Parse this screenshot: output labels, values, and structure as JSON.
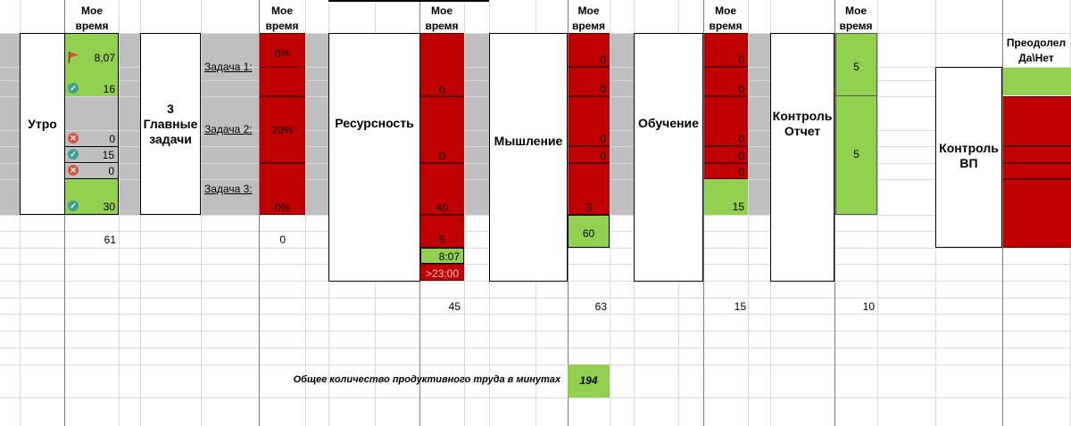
{
  "headers": {
    "my_time": "Мое время",
    "overcame": "Преодолел Да\\Нет"
  },
  "blocks": {
    "morning": "Утро",
    "main_tasks": "3 Главные задачи",
    "resourcefulness": "Ресурсность",
    "thinking": "Мышление",
    "learning": "Обучение",
    "control_report": "Контроль Отчет",
    "control_vp": "Контроль ВП"
  },
  "tasks": [
    "Задача 1:",
    "Задача 2:",
    "Задача 3:"
  ],
  "morning_col": [
    "8,07",
    "16",
    "0",
    "15",
    "0",
    "30"
  ],
  "main_tasks_col": [
    "0%",
    "20%",
    "0%"
  ],
  "resource_col": [
    "0",
    "0",
    "40",
    "5",
    "8:07",
    ">23:00"
  ],
  "thinking_col": [
    "0",
    "0",
    "0",
    "0",
    "3",
    "60"
  ],
  "learning_col": [
    "0",
    "0",
    "0",
    "0",
    "0",
    "15"
  ],
  "control_col": [
    "5",
    "5"
  ],
  "totals": {
    "morning": "61",
    "main_tasks": "0",
    "resource": "45",
    "thinking": "63",
    "learning": "15",
    "control": "10"
  },
  "summary": {
    "label": "Общее количество продуктивного труда в минутах",
    "value": "194"
  },
  "icons": [
    "flag-icon",
    "check-circle-icon",
    "cross-circle-icon"
  ],
  "colors": {
    "red": "#c00000",
    "green": "#92d050",
    "gray_band": "#bfbfbf"
  }
}
